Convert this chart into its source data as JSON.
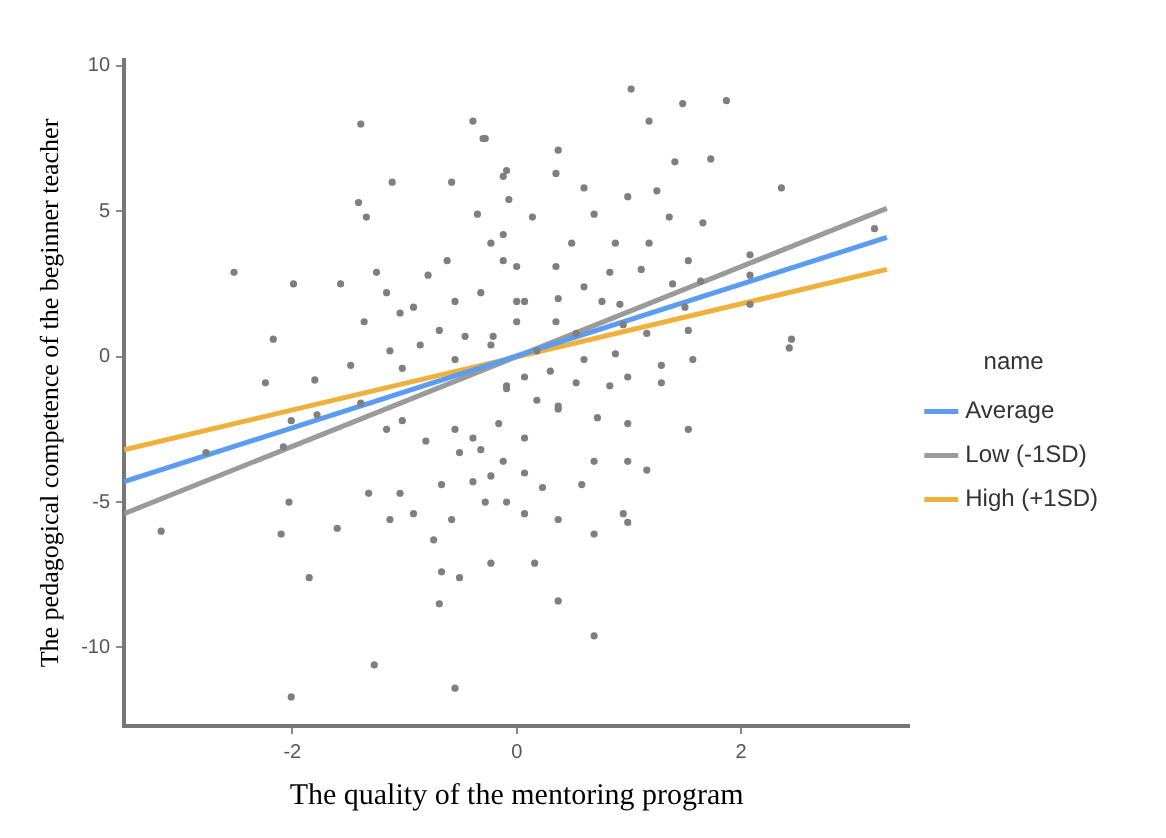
{
  "chart_data": {
    "type": "scatter",
    "xlabel": "The quality of the mentoring program",
    "ylabel": "The pedagogical competence of the beginner teacher",
    "legend_title": "name",
    "legend": "right",
    "grid": false,
    "xlim": [
      -3.5,
      3.5
    ],
    "xticks": [
      -2,
      0,
      2
    ],
    "ylim": [
      -12.7,
      10.2
    ],
    "yticks": [
      -10,
      -5,
      0,
      5,
      10
    ],
    "series": [
      {
        "marker": "circle",
        "color": "#7f7f7f",
        "x": [
          -2.52,
          -1.39,
          -0.39,
          -0.3,
          -1.11,
          -0.58,
          -1.41,
          -1.34,
          -0.35,
          -0.09,
          -0.07,
          -1.99,
          -1.57,
          -2.17,
          -2.24,
          -1.8,
          -1.48,
          -1.25,
          -1.16,
          -1.04,
          -0.92,
          -1.36,
          -0.79,
          -0.62,
          -0.55,
          -0.32,
          -0.23,
          -0.12,
          0,
          -0.86,
          -0.69,
          -0.46,
          -0.21,
          -1.13,
          -1.02,
          -0.55,
          -0.09,
          1.02,
          1.48,
          1.87,
          1.18,
          -0.28,
          0.37,
          1.41,
          1.73,
          0.35,
          -0.12,
          0.6,
          1.25,
          2.36,
          0.99,
          0.69,
          1.36,
          1.66,
          0.14,
          3.19,
          -0.12,
          0.49,
          0.88,
          1.18,
          1.53,
          2.08,
          2.08,
          0,
          0.35,
          0.83,
          1.11,
          0.6,
          1.39,
          1.64,
          0.07,
          0.37,
          0.76,
          0.92,
          1.5,
          2.08,
          0,
          0.35,
          0.95,
          1.53,
          2.45,
          2.43,
          0.53,
          1.16,
          -0.23,
          0.18,
          0.6,
          0.88,
          1.29,
          1.57,
          0.07,
          0.3,
          0.53,
          0.99,
          1.29,
          -0.09,
          0.18,
          0.37,
          -2.01,
          -1.78,
          -1.39,
          -1.16,
          -1.02,
          -0.81,
          -0.55,
          -0.39,
          -0.51,
          -2.77,
          -2.08,
          -3.17,
          -2.03,
          -2.1,
          -1.6,
          -1.32,
          -1.13,
          -1.04,
          -0.92,
          -0.74,
          -0.67,
          -0.58,
          -0.39,
          -0.28,
          -0.23,
          -0.67,
          -0.51,
          -1.85,
          -0.69,
          -1.27,
          -2.01,
          -0.55,
          -0.12,
          0.37,
          0.83,
          0.99,
          1.53,
          0.72,
          -0.16,
          0.07,
          0.69,
          0.99,
          1.16,
          -0.23,
          0.07,
          0.58,
          0.23,
          -0.09,
          0.07,
          0.37,
          0.95,
          0.99,
          0.69,
          0.16,
          0.37,
          0.69,
          -0.32
        ],
        "values": [
          2.9,
          8.0,
          8.1,
          7.5,
          6.0,
          6.0,
          5.3,
          4.8,
          4.9,
          6.4,
          5.4,
          2.5,
          2.5,
          0.6,
          -0.9,
          -0.8,
          -0.3,
          2.9,
          2.2,
          1.5,
          1.7,
          1.2,
          2.8,
          3.3,
          1.9,
          2.2,
          3.9,
          3.3,
          1.9,
          0.4,
          0.9,
          0.7,
          0.7,
          0.2,
          -0.4,
          -0.1,
          -1.0,
          9.2,
          8.7,
          8.8,
          8.1,
          7.5,
          7.1,
          6.7,
          6.8,
          6.3,
          6.2,
          5.8,
          5.7,
          5.8,
          5.5,
          4.9,
          4.8,
          4.6,
          4.8,
          4.4,
          4.2,
          3.9,
          3.9,
          3.9,
          3.3,
          3.5,
          2.8,
          3.1,
          3.1,
          2.9,
          3.0,
          2.4,
          2.5,
          2.6,
          1.9,
          2.0,
          1.9,
          1.8,
          1.7,
          1.8,
          1.2,
          1.2,
          1.1,
          0.9,
          0.6,
          0.3,
          0.8,
          0.8,
          0.4,
          0.2,
          -0.1,
          0.1,
          -0.3,
          -0.1,
          -0.7,
          -0.5,
          -0.9,
          -0.7,
          -0.9,
          -1.1,
          -1.5,
          -1.7,
          -2.2,
          -2.0,
          -1.6,
          -2.5,
          -2.2,
          -2.9,
          -2.5,
          -2.8,
          -3.3,
          -3.3,
          -3.1,
          -6.0,
          -5.0,
          -6.1,
          -5.9,
          -4.7,
          -5.6,
          -4.7,
          -5.4,
          -6.3,
          -4.4,
          -5.6,
          -4.3,
          -5.0,
          -7.1,
          -7.4,
          -7.6,
          -7.6,
          -8.5,
          -10.6,
          -11.7,
          -11.4,
          -3.6,
          -1.8,
          -1.0,
          -2.3,
          -2.5,
          -2.1,
          -2.3,
          -2.8,
          -3.6,
          -3.6,
          -3.9,
          -4.1,
          -4.0,
          -4.4,
          -4.5,
          -5.0,
          -5.4,
          -5.6,
          -5.4,
          -5.7,
          -6.1,
          -7.1,
          -8.4,
          -9.6,
          -3.2
        ]
      },
      {
        "type": "line",
        "marker": "none",
        "name": "Average",
        "color": "#5b9cf0",
        "x": [
          -3.5,
          3.3
        ],
        "values": [
          -4.3,
          4.1
        ]
      },
      {
        "type": "line",
        "marker": "none",
        "name": "Low (-1SD)",
        "color": "#9a9a9a",
        "x": [
          -3.5,
          3.3
        ],
        "values": [
          -5.4,
          5.1
        ]
      },
      {
        "type": "line",
        "marker": "none",
        "name": "High (+1SD)",
        "color": "#f0b03c",
        "x": [
          -3.5,
          3.3
        ],
        "values": [
          -3.2,
          3.0
        ]
      }
    ]
  }
}
